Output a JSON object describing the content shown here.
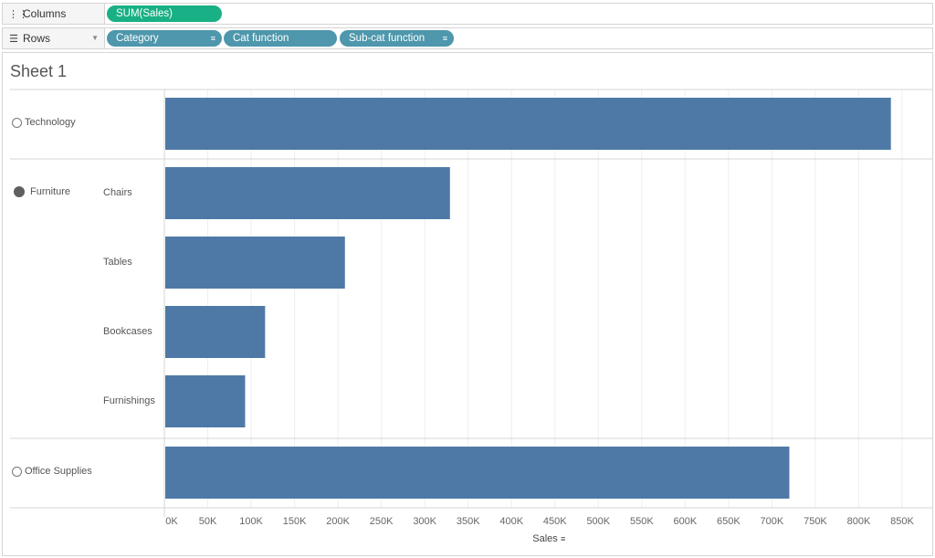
{
  "columns_shelf": {
    "label": "Columns",
    "icon": "columns-icon",
    "pills": [
      "SUM(Sales)"
    ]
  },
  "rows_shelf": {
    "label": "Rows",
    "icon": "rows-icon",
    "pills": [
      "Category",
      "Cat function",
      "Sub-cat function"
    ]
  },
  "sheet": {
    "title": "Sheet 1"
  },
  "colors": {
    "bar": "#4e79a7",
    "pill_green": "#18b084",
    "pill_blue": "#4e97ad"
  },
  "chart_data": {
    "type": "bar",
    "orientation": "horizontal",
    "rows": [
      {
        "category": "Technology",
        "category_marker": "circle-empty",
        "subcategory": "",
        "value": 836000
      },
      {
        "category": "Furniture",
        "category_marker": "circle-filled",
        "subcategory": "Chairs",
        "value": 328000
      },
      {
        "category": "",
        "subcategory": "Tables",
        "value": 207000
      },
      {
        "category": "",
        "subcategory": "Bookcases",
        "value": 115000
      },
      {
        "category": "",
        "subcategory": "Furnishings",
        "value": 92000
      },
      {
        "category": "Office Supplies",
        "category_marker": "circle-empty",
        "subcategory": "",
        "value": 719000
      }
    ],
    "xlabel": "Sales",
    "xlim": [
      0,
      850000
    ],
    "xticks": [
      "0K",
      "50K",
      "100K",
      "150K",
      "200K",
      "250K",
      "300K",
      "350K",
      "400K",
      "450K",
      "500K",
      "550K",
      "600K",
      "650K",
      "700K",
      "750K",
      "800K",
      "850K"
    ],
    "grid": true
  }
}
